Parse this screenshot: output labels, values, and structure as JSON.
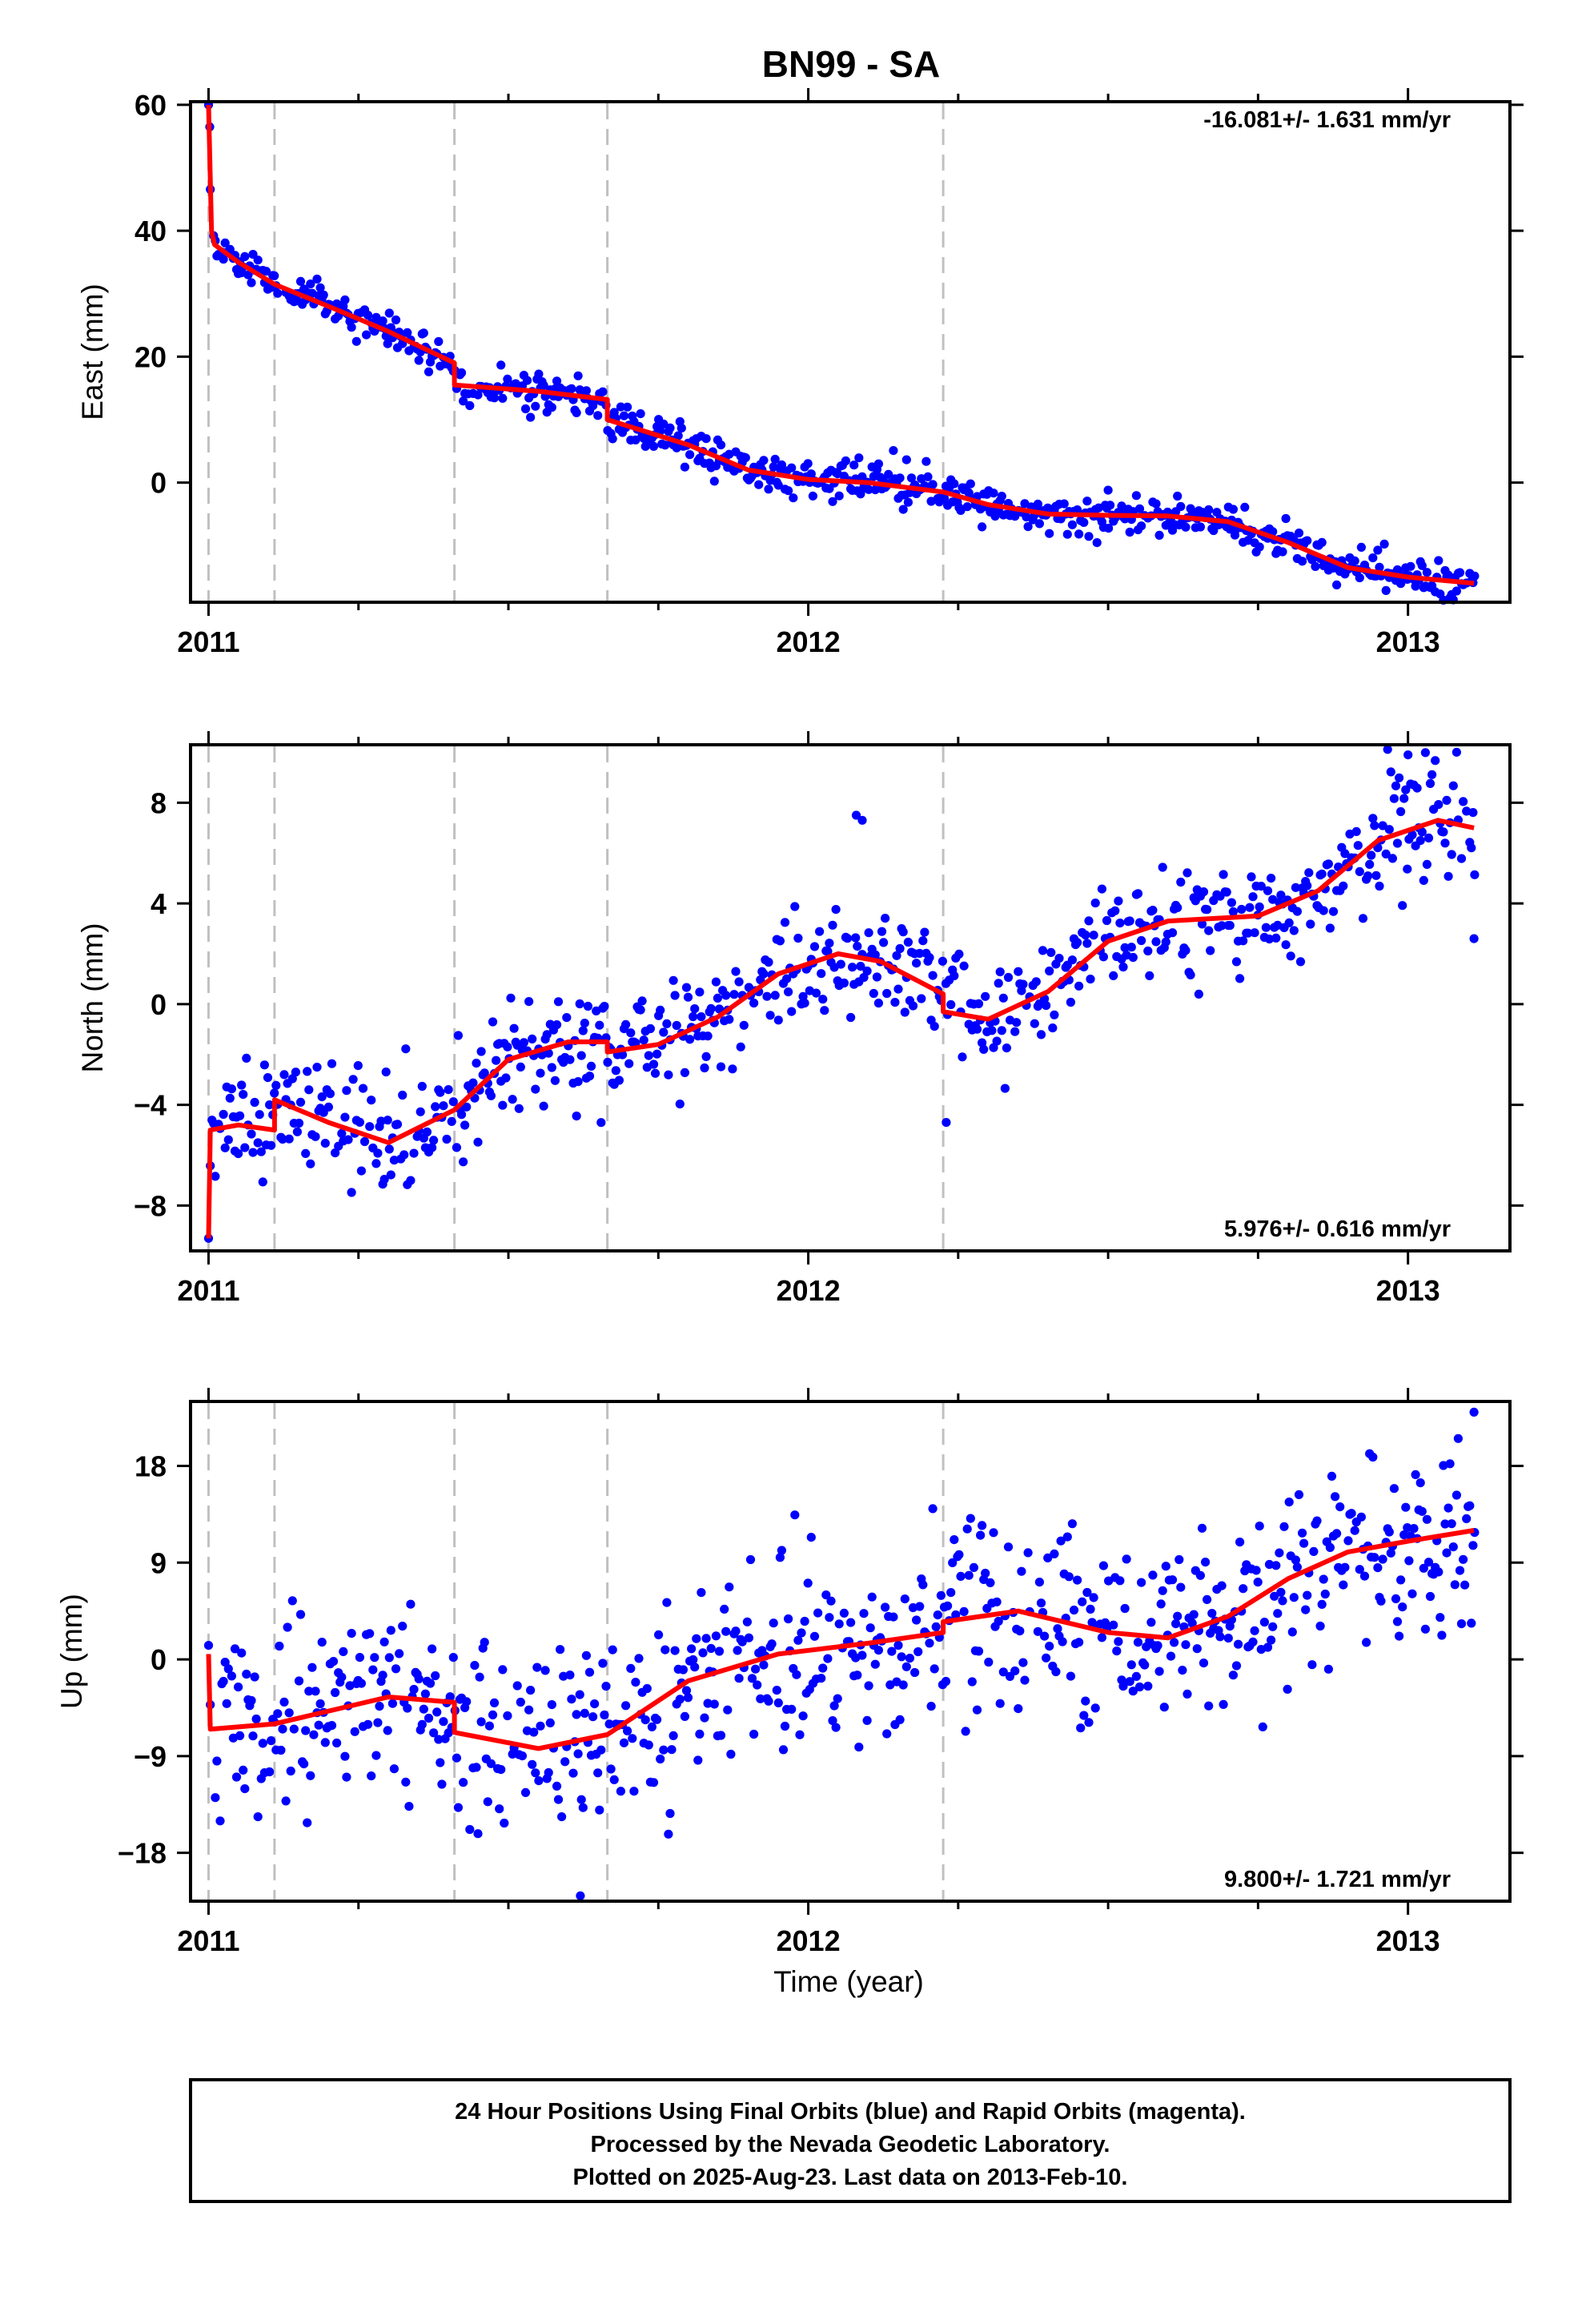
{
  "chart_data": {
    "type": "scatter",
    "title": "BN99 - SA",
    "x_axis": {
      "label": "Time (year)",
      "range": [
        2010.97,
        2013.17
      ],
      "ticks": [
        2011,
        2012,
        2013
      ],
      "tick_labels": [
        "2011",
        "2012",
        "2013"
      ],
      "minor_step": 0.25
    },
    "events": [
      2011.0,
      2011.11,
      2011.41,
      2011.665,
      2012.225
    ],
    "colors": {
      "points": "#0000ff",
      "fit": "#ff0000",
      "events": "#c0c0c0",
      "axes": "#000000"
    },
    "panels": [
      {
        "ylabel": "East (mm)",
        "ylim": [
          -19,
          60.5
        ],
        "yticks": [
          60,
          40,
          20,
          0
        ],
        "ytick_labels": [
          "60",
          "40",
          "20",
          "0"
        ],
        "rate": "-16.081+/- 1.631 mm/yr",
        "rate_position": "top-right",
        "fit": [
          [
            2011.0,
            60
          ],
          [
            2011.005,
            40
          ],
          [
            2011.01,
            37.8
          ],
          [
            2011.05,
            35
          ],
          [
            2011.11,
            31.5
          ],
          [
            2011.2,
            28
          ],
          [
            2011.3,
            24
          ],
          [
            2011.41,
            19
          ],
          [
            2011.41,
            15.5
          ],
          [
            2011.55,
            14.5
          ],
          [
            2011.665,
            13.2
          ],
          [
            2011.665,
            10
          ],
          [
            2011.8,
            6
          ],
          [
            2011.9,
            2
          ],
          [
            2012.0,
            0.5
          ],
          [
            2012.1,
            0
          ],
          [
            2012.225,
            -1.5
          ],
          [
            2012.3,
            -3.5
          ],
          [
            2012.4,
            -5
          ],
          [
            2012.5,
            -5.2
          ],
          [
            2012.6,
            -5.3
          ],
          [
            2012.7,
            -6.2
          ],
          [
            2012.8,
            -9.5
          ],
          [
            2012.9,
            -13.5
          ],
          [
            2013.0,
            -15
          ],
          [
            2013.11,
            -16
          ]
        ],
        "noise": 1.5,
        "seed": 11,
        "extra_points": [
          [
            2011.0,
            60
          ],
          [
            2011.002,
            56.5
          ],
          [
            2012.5,
            -1.2
          ]
        ]
      },
      {
        "ylabel": "North (mm)",
        "ylim": [
          -9.8,
          10.3
        ],
        "yticks": [
          8,
          4,
          0,
          -4,
          -8
        ],
        "ytick_labels": [
          "8",
          "4",
          "0",
          "−4",
          "−8"
        ],
        "rate": "5.976+/- 0.616 mm/yr",
        "rate_position": "bottom-right",
        "fit": [
          [
            2011.0,
            -9.3
          ],
          [
            2011.003,
            -5
          ],
          [
            2011.05,
            -4.8
          ],
          [
            2011.11,
            -5
          ],
          [
            2011.11,
            -3.8
          ],
          [
            2011.2,
            -4.7
          ],
          [
            2011.3,
            -5.5
          ],
          [
            2011.41,
            -4.2
          ],
          [
            2011.5,
            -2.2
          ],
          [
            2011.6,
            -1.5
          ],
          [
            2011.665,
            -1.5
          ],
          [
            2011.665,
            -1.9
          ],
          [
            2011.75,
            -1.6
          ],
          [
            2011.85,
            -0.5
          ],
          [
            2011.95,
            1.2
          ],
          [
            2012.05,
            2.0
          ],
          [
            2012.12,
            1.7
          ],
          [
            2012.225,
            0.4
          ],
          [
            2012.225,
            -0.3
          ],
          [
            2012.3,
            -0.6
          ],
          [
            2012.4,
            0.5
          ],
          [
            2012.5,
            2.5
          ],
          [
            2012.6,
            3.3
          ],
          [
            2012.75,
            3.5
          ],
          [
            2012.85,
            4.5
          ],
          [
            2012.95,
            6.5
          ],
          [
            2013.05,
            7.3
          ],
          [
            2013.11,
            7.0
          ]
        ],
        "noise": 1.1,
        "seed": 23,
        "extra_points": [
          [
            2011.0,
            -9.3
          ],
          [
            2012.08,
            7.5
          ],
          [
            2012.09,
            7.3
          ],
          [
            2012.23,
            -4.7
          ],
          [
            2013.0,
            9.9
          ],
          [
            2013.11,
            2.6
          ]
        ]
      },
      {
        "ylabel": "Up (mm)",
        "ylim": [
          -22.5,
          24
        ],
        "yticks": [
          18,
          9,
          0,
          -9,
          -18
        ],
        "ytick_labels": [
          "18",
          "9",
          "0",
          "−9",
          "−18"
        ],
        "rate": "9.800+/- 1.721 mm/yr",
        "rate_position": "bottom-right",
        "fit": [
          [
            2011.0,
            0.5
          ],
          [
            2011.003,
            -6.5
          ],
          [
            2011.11,
            -6
          ],
          [
            2011.3,
            -3.5
          ],
          [
            2011.41,
            -4
          ],
          [
            2011.41,
            -6.8
          ],
          [
            2011.55,
            -8.3
          ],
          [
            2011.665,
            -7
          ],
          [
            2011.8,
            -2
          ],
          [
            2011.95,
            0.5
          ],
          [
            2012.1,
            1.5
          ],
          [
            2012.225,
            2.5
          ],
          [
            2012.225,
            3.5
          ],
          [
            2012.35,
            4.5
          ],
          [
            2012.5,
            2.5
          ],
          [
            2012.6,
            2
          ],
          [
            2012.7,
            4
          ],
          [
            2012.8,
            7.5
          ],
          [
            2012.9,
            10
          ],
          [
            2013.0,
            11
          ],
          [
            2013.11,
            12
          ]
        ],
        "noise": 4.2,
        "seed": 37,
        "extra_points": [
          [
            2011.0,
            1.3
          ],
          [
            2011.62,
            -22
          ],
          [
            2013.11,
            23
          ]
        ]
      }
    ]
  },
  "footer": {
    "line1": "24 Hour Positions Using Final Orbits (blue) and Rapid Orbits (magenta).",
    "line2": "Processed by the Nevada Geodetic Laboratory.",
    "line3": "Plotted on 2025-Aug-23. Last data on 2013-Feb-10."
  }
}
